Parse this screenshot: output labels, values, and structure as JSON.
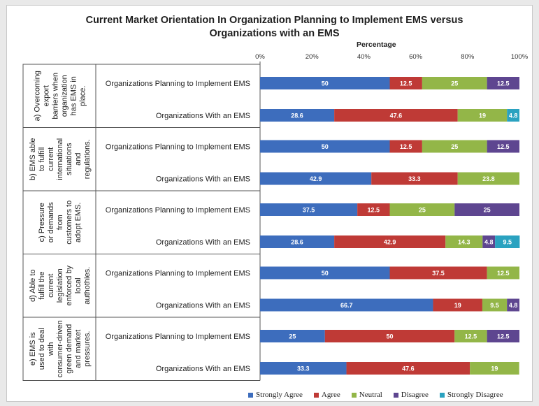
{
  "chart_data": {
    "type": "bar",
    "orientation": "horizontal",
    "stacked": true,
    "percent_stacked": true,
    "title": "Current Market Orientation In Organization Planning to Implement EMS versus Organizations with an EMS",
    "xlabel": "Percentage",
    "xlim": [
      0,
      100
    ],
    "x_ticks": [
      "0%",
      "20%",
      "40%",
      "60%",
      "80%",
      "100%"
    ],
    "legend_position": "bottom",
    "grid": false,
    "categories": [
      "Organizations Planning to Implement EMS",
      "Organizations With an EMS"
    ],
    "groups": [
      {
        "label": "a) Overcoming export barriers when organization has EMS in place.",
        "bars": [
          {
            "category": "Organizations Planning to Implement EMS",
            "values": [
              50,
              12.5,
              25,
              12.5,
              0
            ]
          },
          {
            "category": "Organizations With an EMS",
            "values": [
              28.6,
              47.6,
              19,
              0,
              4.8
            ]
          }
        ]
      },
      {
        "label": "b) EMS able to fulfill current international situations and regulations.",
        "bars": [
          {
            "category": "Organizations Planning to Implement EMS",
            "values": [
              50,
              12.5,
              25,
              12.5,
              0
            ]
          },
          {
            "category": "Organizations With an EMS",
            "values": [
              42.9,
              33.3,
              23.8,
              0,
              0
            ]
          }
        ]
      },
      {
        "label": "c) Pressure or demands from customers to adopt EMS.",
        "bars": [
          {
            "category": "Organizations Planning to Implement EMS",
            "values": [
              37.5,
              12.5,
              25,
              25,
              0
            ]
          },
          {
            "category": "Organizations With an EMS",
            "values": [
              28.6,
              42.9,
              14.3,
              4.8,
              9.5
            ]
          }
        ]
      },
      {
        "label": "d) Able to fulfill the current legislation enforced by local authothies.",
        "bars": [
          {
            "category": "Organizations Planning to Implement EMS",
            "values": [
              50,
              37.5,
              12.5,
              0,
              0
            ]
          },
          {
            "category": "Organizations With an EMS",
            "values": [
              66.7,
              19,
              9.5,
              4.8,
              0
            ]
          }
        ]
      },
      {
        "label": "e) EMS is used to deal with consumer-driven green demand and market pressures.",
        "bars": [
          {
            "category": "Organizations Planning to Implement EMS",
            "values": [
              25,
              50,
              12.5,
              12.5,
              0
            ]
          },
          {
            "category": "Organizations With an EMS",
            "values": [
              33.3,
              47.6,
              19,
              0,
              0
            ]
          }
        ]
      }
    ],
    "series": [
      {
        "name": "Strongly Agree",
        "color": "#3d6dbd"
      },
      {
        "name": "Agree",
        "color": "#bf3a36"
      },
      {
        "name": "Neutral",
        "color": "#93b648"
      },
      {
        "name": "Disagree",
        "color": "#5e4690"
      },
      {
        "name": "Strongly Disagree",
        "color": "#2aa2c0"
      }
    ]
  }
}
